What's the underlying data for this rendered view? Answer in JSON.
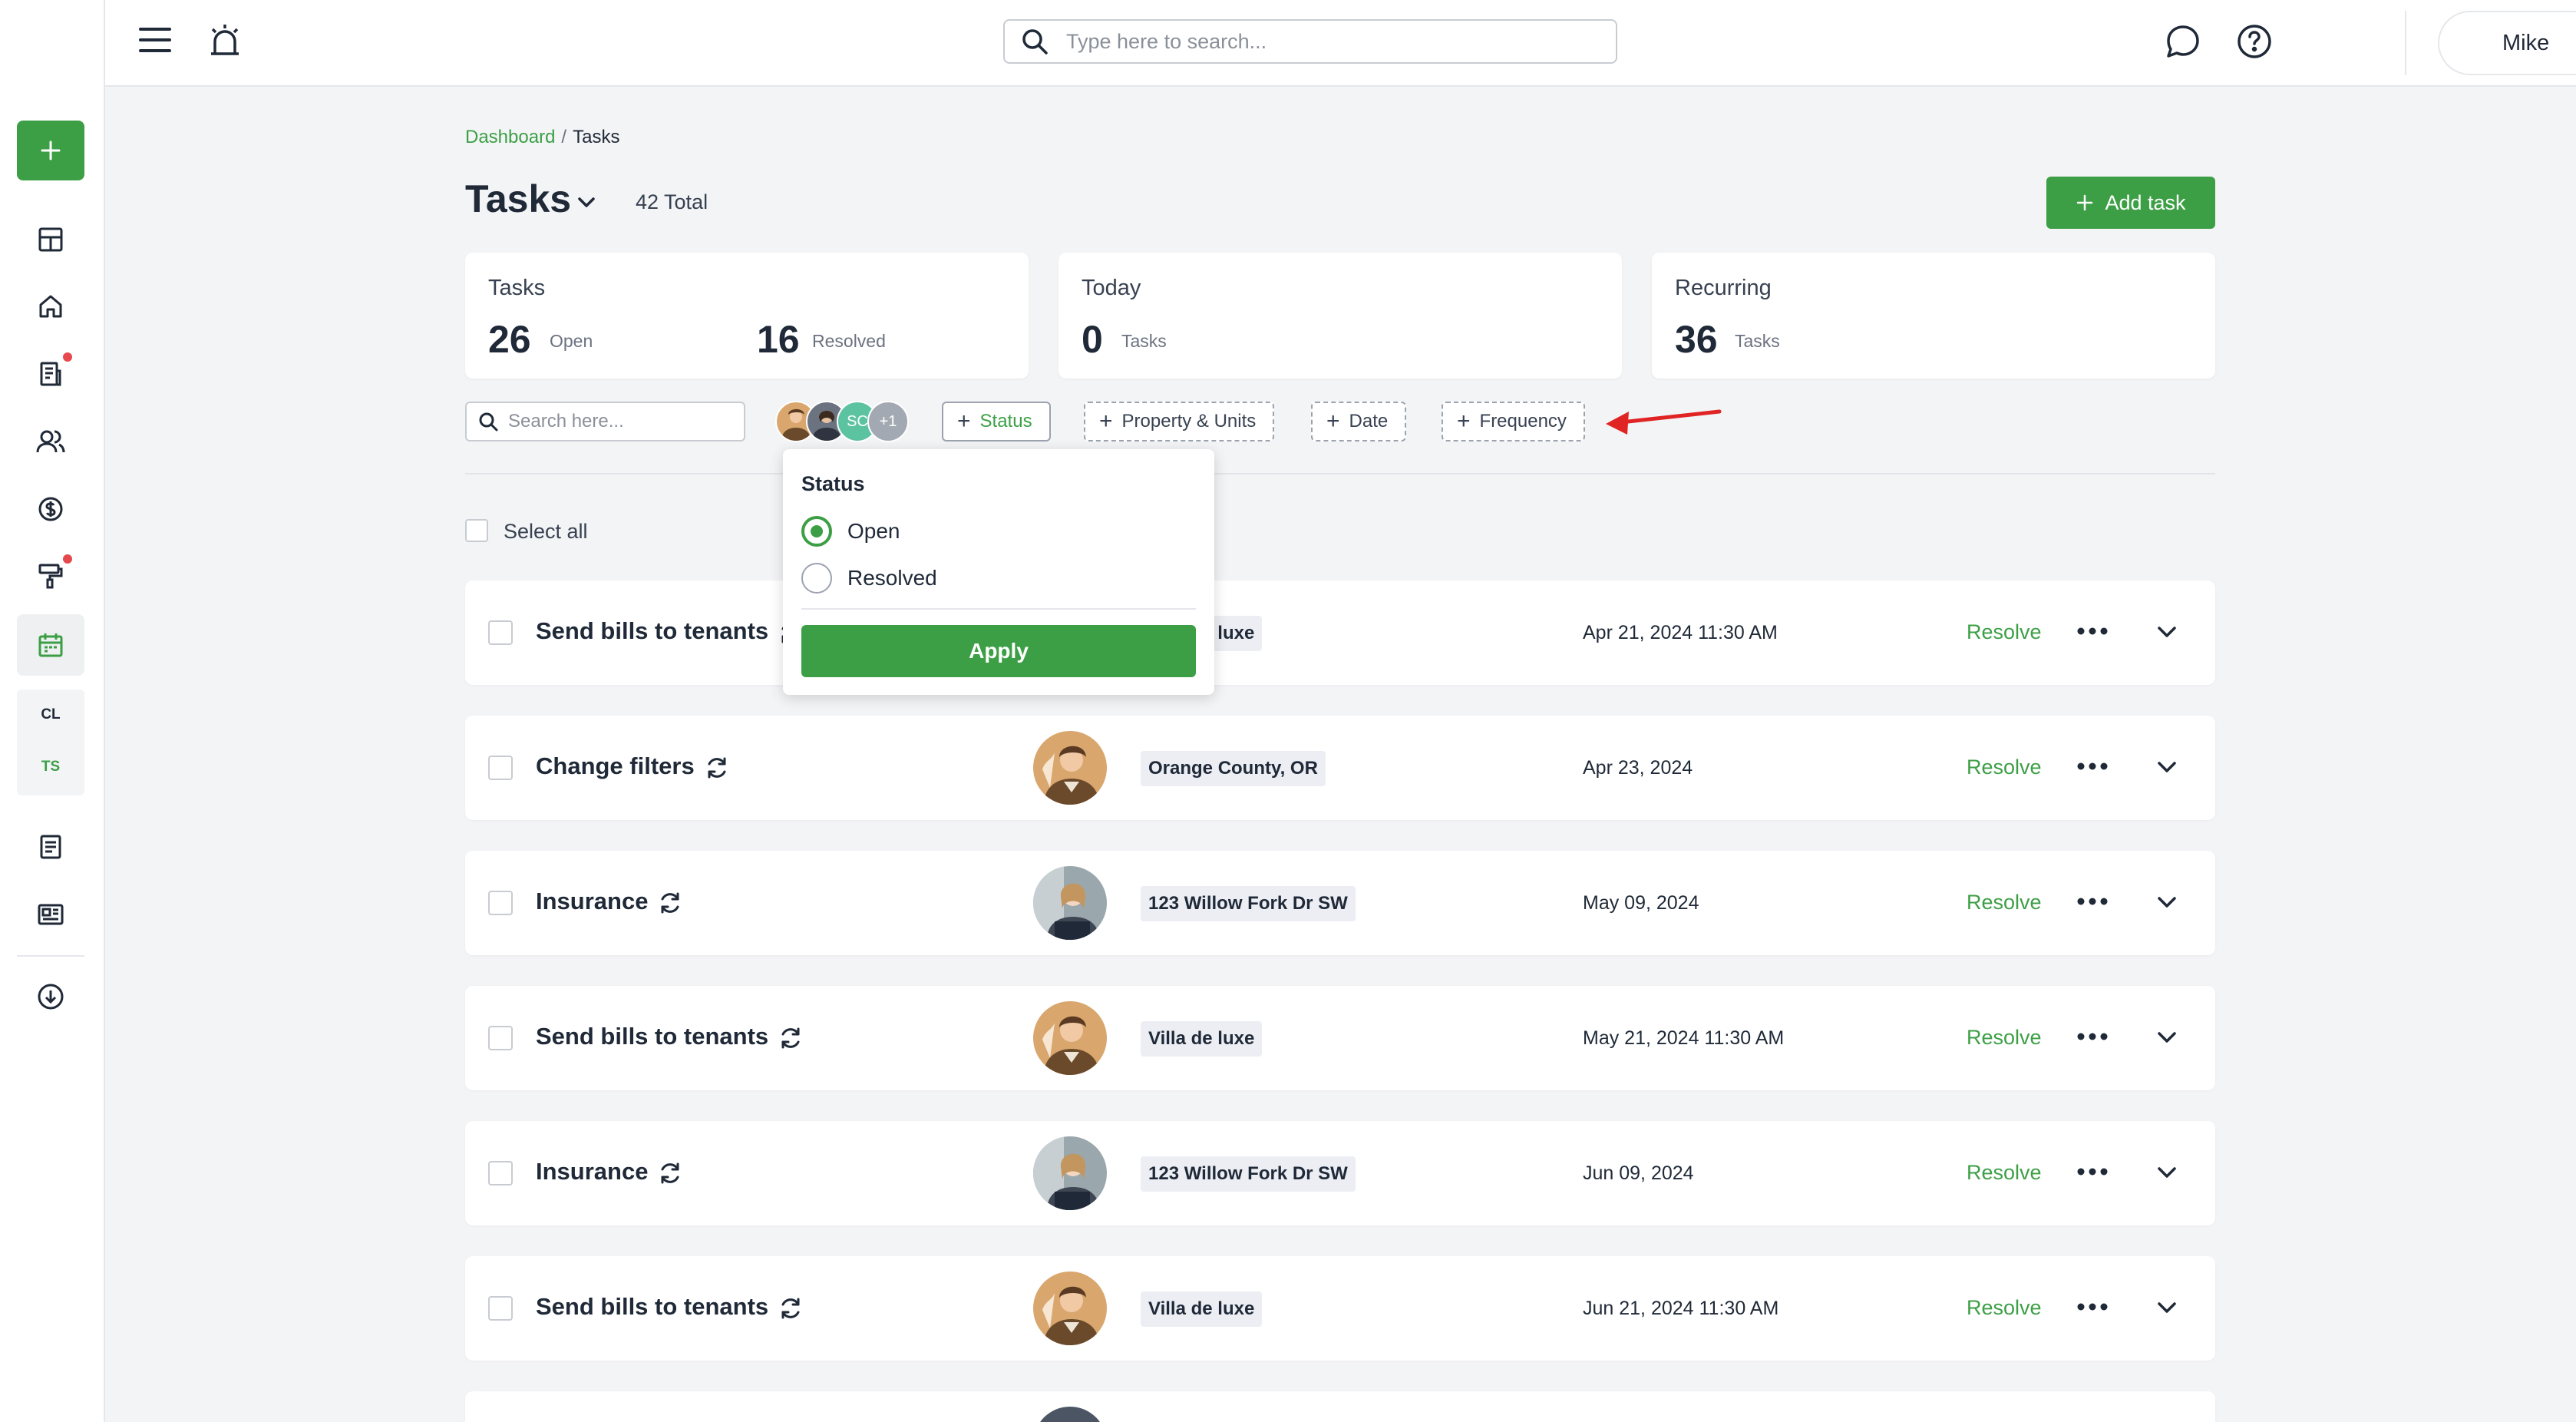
{
  "colors": {
    "accent": "#3c9f45",
    "annotation_arrow": "#e02424",
    "tag_bg": "#eceef4"
  },
  "topbar": {
    "search_placeholder": "Type here to search...",
    "user_name": "Mike"
  },
  "sidebar": {
    "sub_items": [
      "CL",
      "TS"
    ]
  },
  "breadcrumb": {
    "parent": "Dashboard",
    "separator": "/",
    "current": "Tasks"
  },
  "page": {
    "title": "Tasks",
    "total": "42 Total",
    "add_task": "Add task"
  },
  "stats": {
    "tasks": {
      "title": "Tasks",
      "open_count": "26",
      "open_label": "Open",
      "resolved_count": "16",
      "resolved_label": "Resolved"
    },
    "today": {
      "title": "Today",
      "count": "0",
      "label": "Tasks"
    },
    "recurring": {
      "title": "Recurring",
      "count": "36",
      "label": "Tasks"
    }
  },
  "filters": {
    "search_placeholder": "Search here...",
    "avatar_initials": "SC",
    "avatar_more": "+1",
    "chips": [
      "Status",
      "Property & Units",
      "Date",
      "Frequency"
    ]
  },
  "status_dropdown": {
    "title": "Status",
    "options": [
      {
        "label": "Open",
        "selected": true
      },
      {
        "label": "Resolved",
        "selected": false
      }
    ],
    "apply": "Apply"
  },
  "select_all": "Select all",
  "rows": [
    {
      "title": "Send bills to tenants",
      "property": "Villa de luxe",
      "property_visible": "luxe",
      "date": "Apr 21, 2024 11:30 AM",
      "action": "Resolve",
      "avatar": "man"
    },
    {
      "title": "Change filters",
      "property": "Orange County, OR",
      "date": "Apr 23, 2024",
      "action": "Resolve",
      "avatar": "man"
    },
    {
      "title": "Insurance",
      "property": "123 Willow Fork Dr SW",
      "date": "May 09, 2024",
      "action": "Resolve",
      "avatar": "woman"
    },
    {
      "title": "Send bills to tenants",
      "property": "Villa de luxe",
      "date": "May 21, 2024 11:30 AM",
      "action": "Resolve",
      "avatar": "man"
    },
    {
      "title": "Insurance",
      "property": "123 Willow Fork Dr SW",
      "date": "Jun 09, 2024",
      "action": "Resolve",
      "avatar": "woman"
    },
    {
      "title": "Send bills to tenants",
      "property": "Villa de luxe",
      "date": "Jun 21, 2024 11:30 AM",
      "action": "Resolve",
      "avatar": "man"
    }
  ]
}
